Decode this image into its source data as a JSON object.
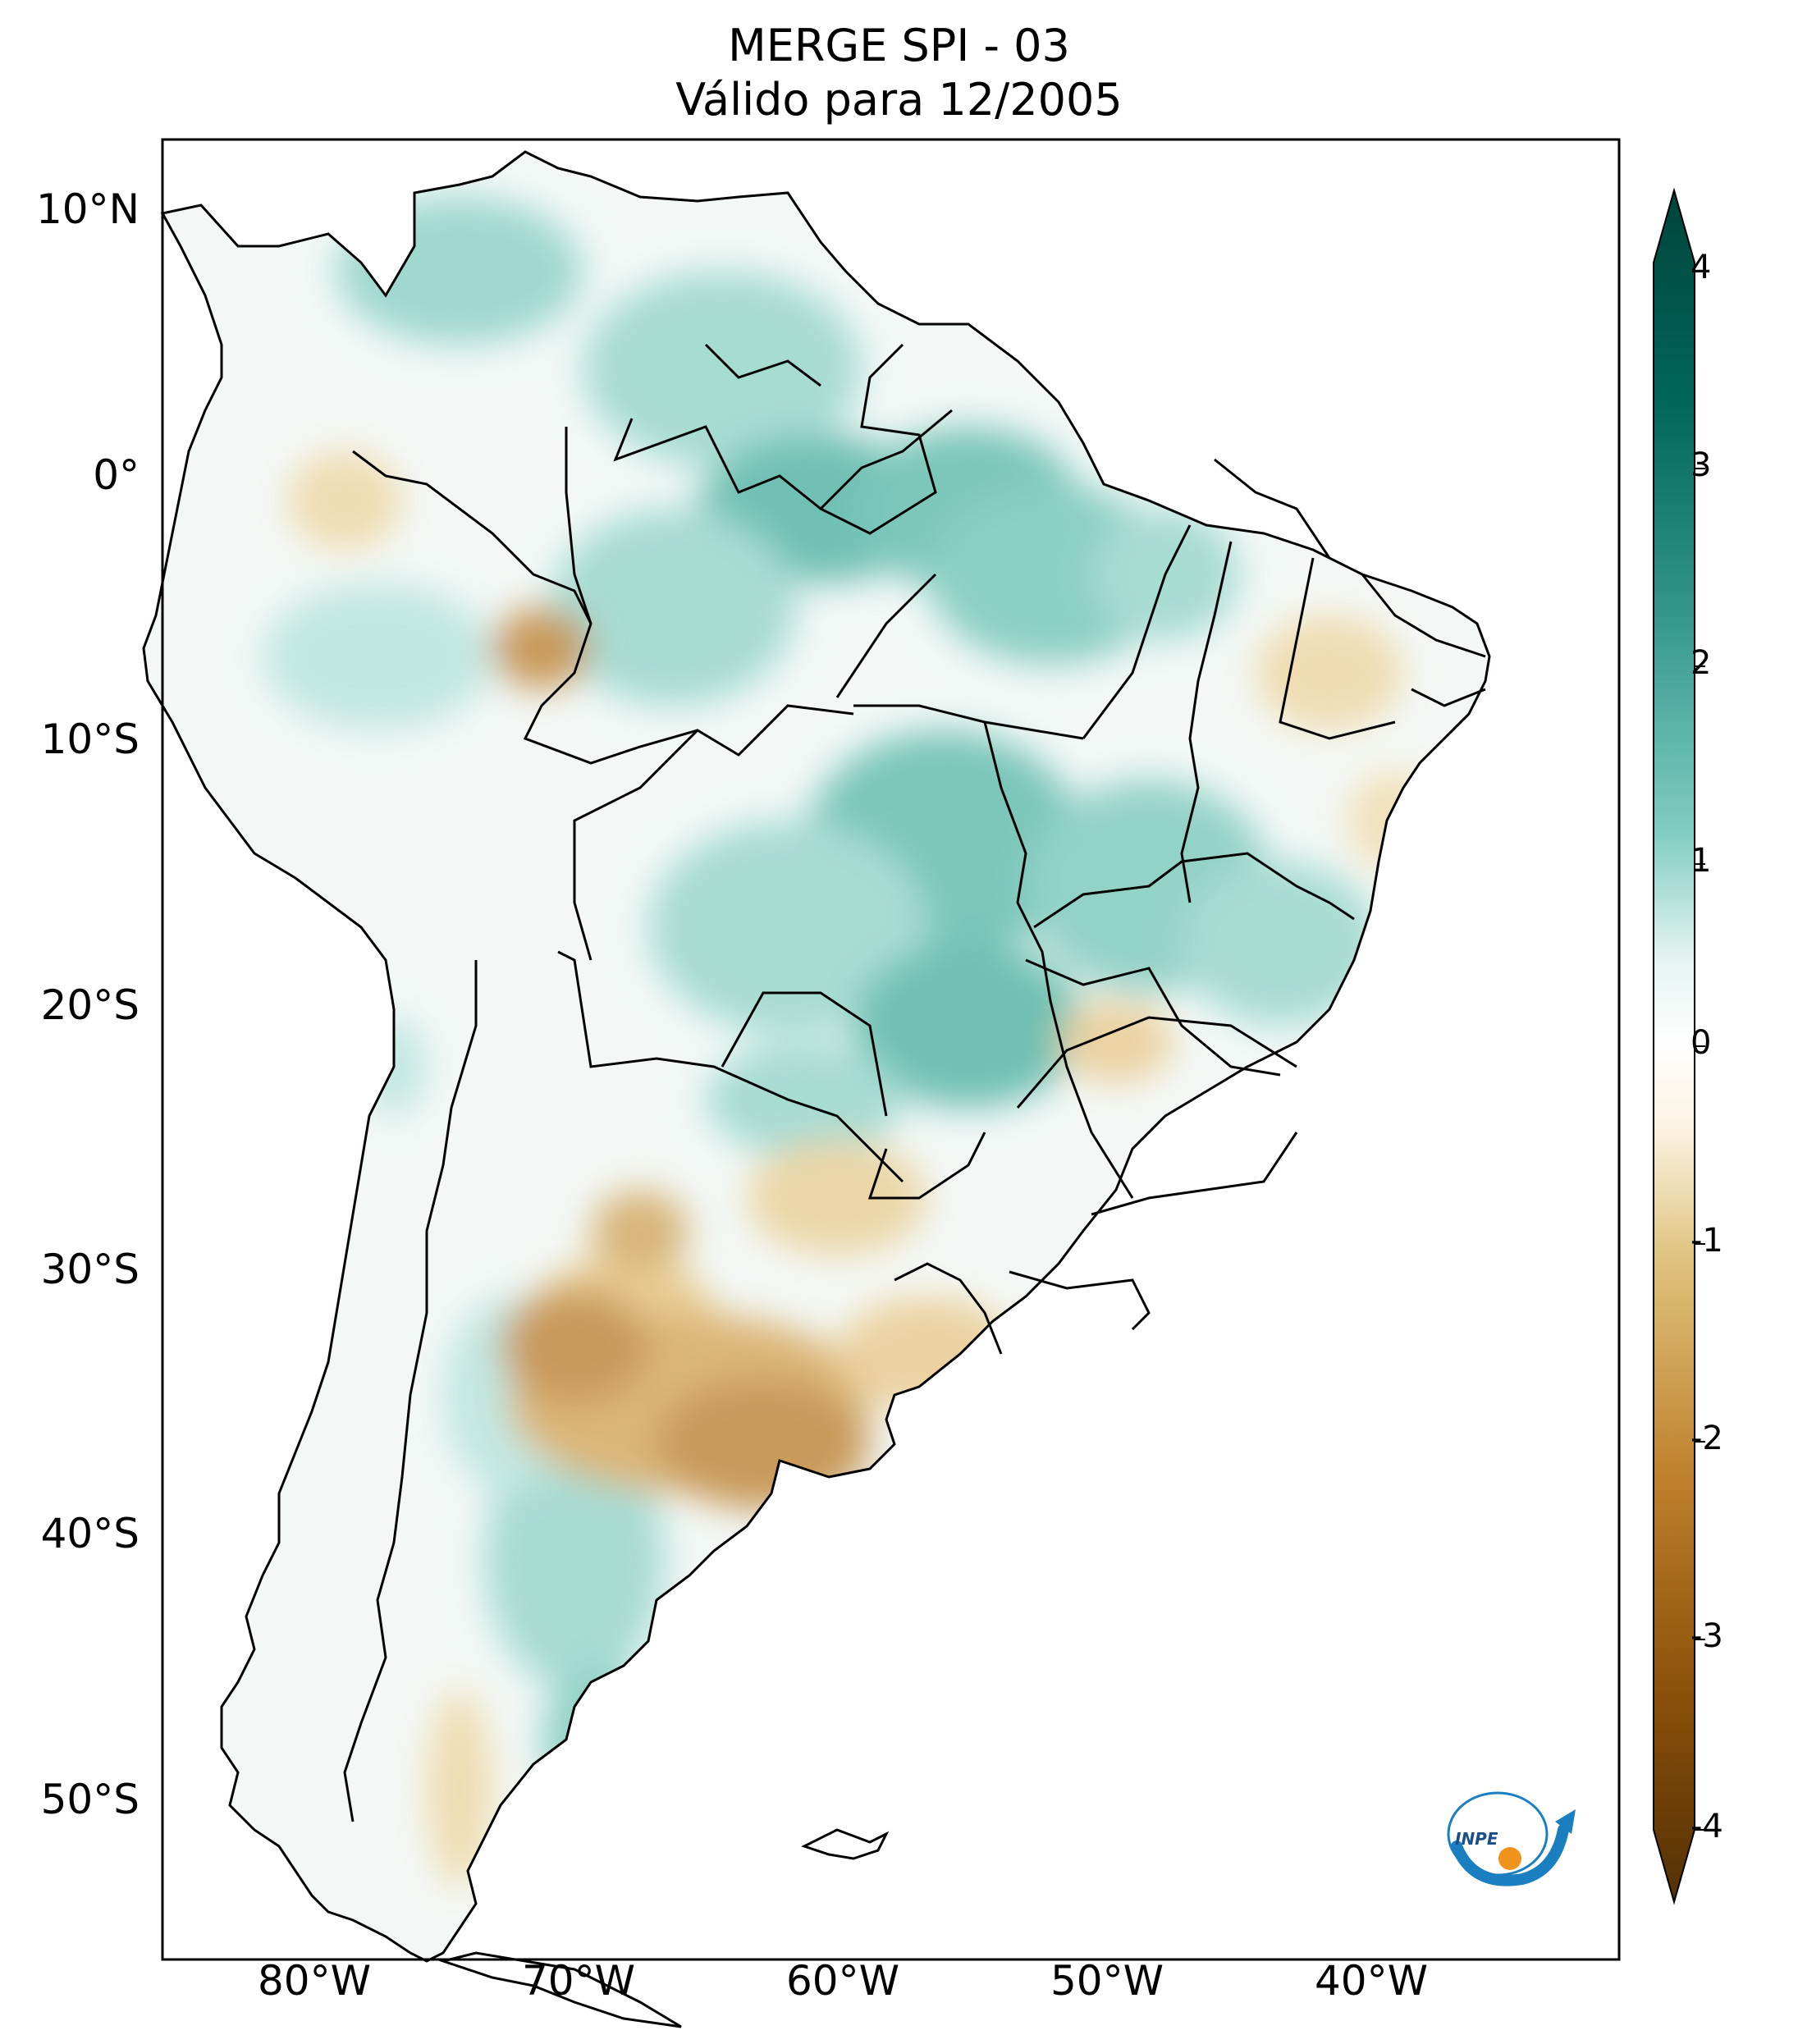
{
  "title": {
    "line1": "MERGE   SPI - 03",
    "line2": "Válido para 12/2005"
  },
  "axes": {
    "lat_labels": [
      "10°N",
      "0°",
      "10°S",
      "20°S",
      "30°S",
      "40°S",
      "50°S"
    ],
    "lon_labels": [
      "80°W",
      "70°W",
      "60°W",
      "50°W",
      "40°W"
    ]
  },
  "colorbar": {
    "ticks": [
      "4",
      "3",
      "2",
      "1",
      "0",
      "-1",
      "-2",
      "-3",
      "-4"
    ],
    "colors": {
      "wet_max": "#00443a",
      "wet_mid": "#2f9e8f",
      "wet_light": "#c7eae5",
      "neutral": "#f5f5f5",
      "dry_light": "#f6e8c3",
      "dry_mid": "#bf812d",
      "dry_max": "#543005"
    }
  },
  "logo": {
    "text": "INPE"
  }
}
